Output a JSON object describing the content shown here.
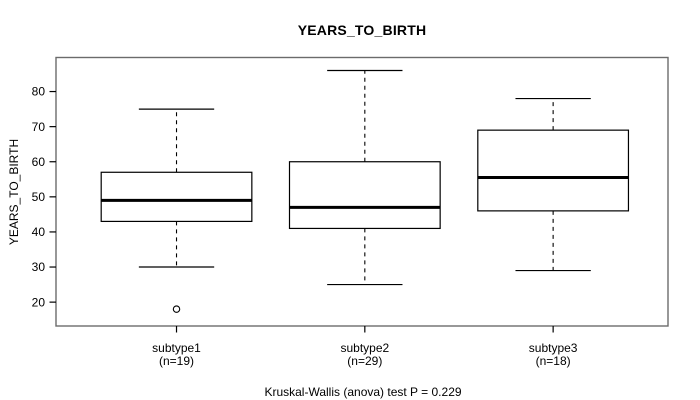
{
  "chart_data": {
    "type": "boxplot",
    "title": "YEARS_TO_BIRTH",
    "ylabel": "YEARS_TO_BIRTH",
    "footnote": "Kruskal-Wallis (anova) test P = 0.229",
    "y_ticks": [
      20,
      30,
      40,
      50,
      60,
      70,
      80
    ],
    "ylim": [
      13.2,
      89.7
    ],
    "xlim": [
      0.36,
      3.61
    ],
    "box_width": 0.8,
    "cap_width": 0.4,
    "grid": false,
    "colors": {
      "line": "#000000",
      "frame": "#6b6b6b",
      "background": "#ffffff"
    },
    "groups": [
      {
        "label": "subtype1",
        "sublabel": "(n=19)",
        "n": 19,
        "position": 1,
        "whisker_low": 30,
        "q1": 43,
        "median": 49,
        "q3": 57,
        "whisker_high": 75,
        "outliers": [
          18
        ]
      },
      {
        "label": "subtype2",
        "sublabel": "(n=29)",
        "n": 29,
        "position": 2,
        "whisker_low": 25,
        "q1": 41,
        "median": 47,
        "q3": 60,
        "whisker_high": 86,
        "outliers": []
      },
      {
        "label": "subtype3",
        "sublabel": "(n=18)",
        "n": 18,
        "position": 3,
        "whisker_low": 29,
        "q1": 46,
        "median": 55.5,
        "q3": 69,
        "whisker_high": 78,
        "outliers": []
      }
    ]
  }
}
